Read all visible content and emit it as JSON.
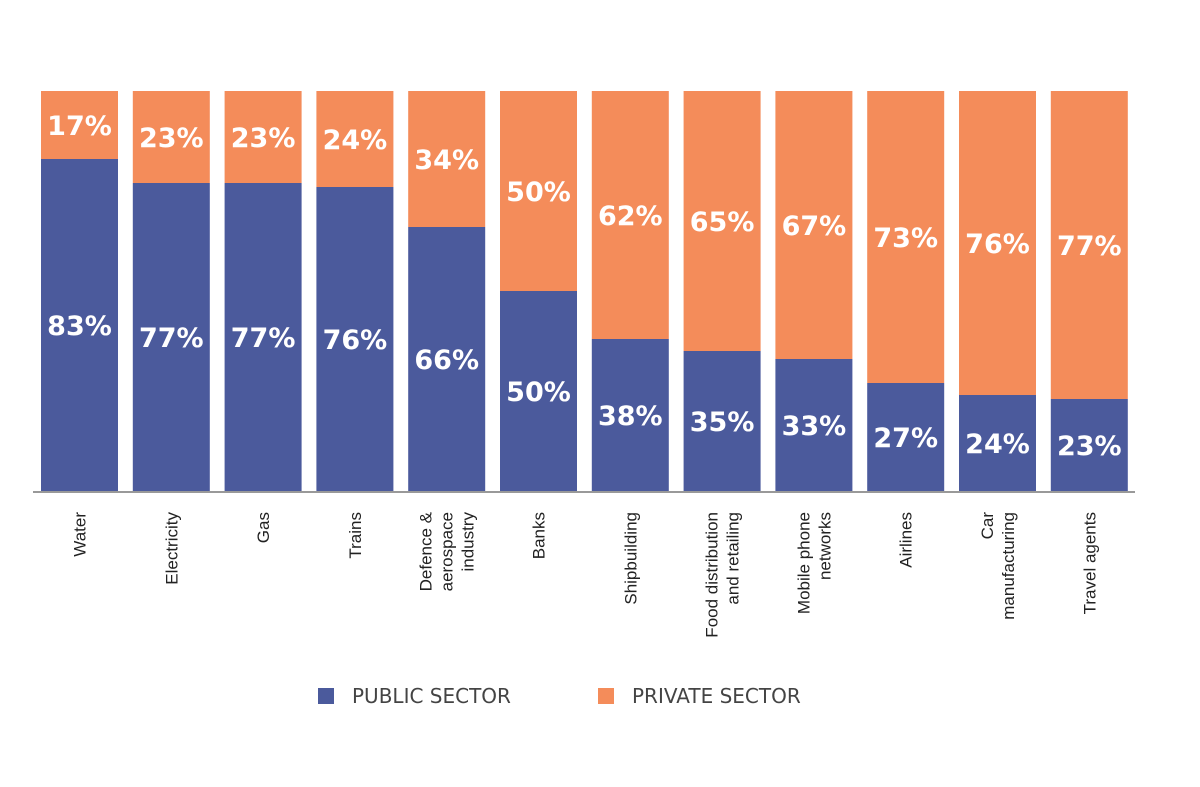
{
  "chart_data": {
    "type": "bar",
    "stacked": true,
    "percent": true,
    "categories": [
      [
        "Water"
      ],
      [
        "Electricity"
      ],
      [
        "Gas"
      ],
      [
        "Trains"
      ],
      [
        "Defence &",
        "aerospace",
        "industry"
      ],
      [
        "Banks"
      ],
      [
        "Shipbuilding"
      ],
      [
        "Food distribution",
        "and retailing"
      ],
      [
        "Mobile phone",
        "networks"
      ],
      [
        "Airlines"
      ],
      [
        "Car",
        "manufacturing"
      ],
      [
        "Travel agents"
      ]
    ],
    "series": [
      {
        "name": "PUBLIC SECTOR",
        "color": "#4b5a9c",
        "values": [
          83,
          77,
          77,
          76,
          66,
          50,
          38,
          35,
          33,
          27,
          24,
          23
        ]
      },
      {
        "name": "PRIVATE SECTOR",
        "color": "#f48c5a",
        "values": [
          17,
          23,
          23,
          24,
          34,
          50,
          62,
          65,
          67,
          73,
          76,
          77
        ]
      }
    ],
    "ylim": [
      0,
      100
    ],
    "legend_position": "bottom"
  }
}
